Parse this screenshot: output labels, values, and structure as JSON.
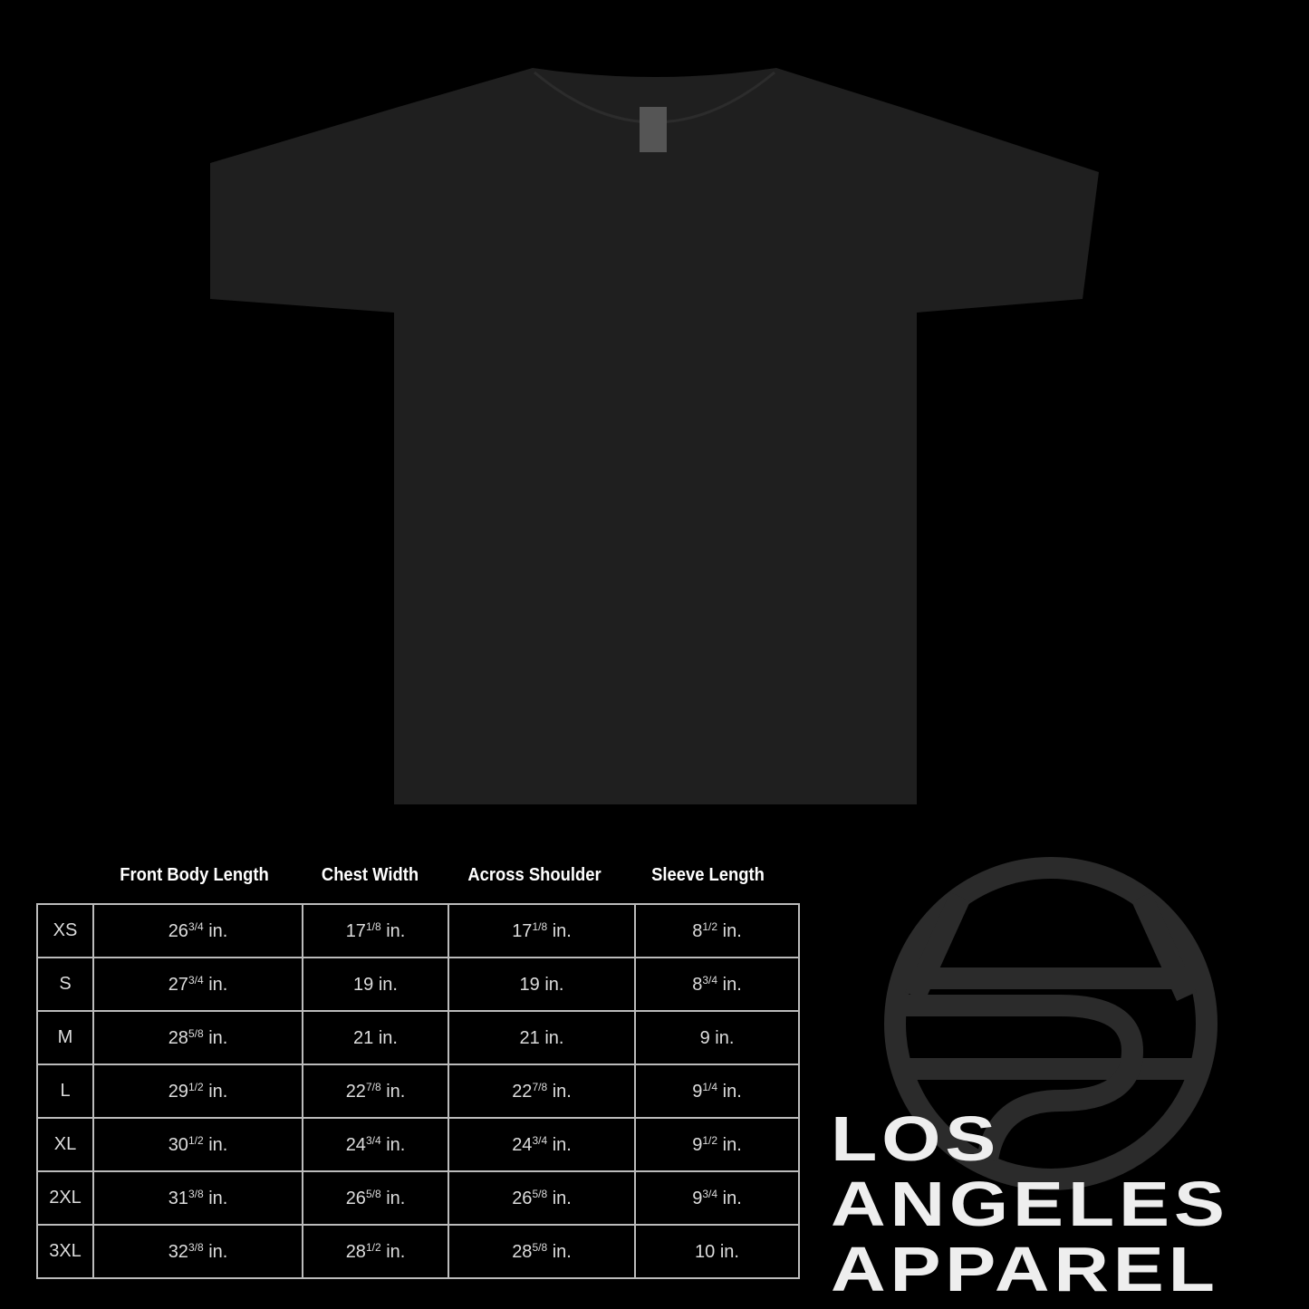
{
  "colors": {
    "background": "#000000",
    "shirt": "#1f1f1f",
    "logo_globe": "#2b2b2b",
    "text": "#ffffff",
    "grid": "#bbbbbb"
  },
  "product": {
    "type": "t-shirt",
    "color": "black"
  },
  "size_chart": {
    "columns": [
      "Front Body Length",
      "Chest Width",
      "Across Shoulder",
      "Sleeve Length"
    ],
    "rows": [
      {
        "size": "XS",
        "values": [
          {
            "whole": "26",
            "frac": "3/4",
            "unit": "in."
          },
          {
            "whole": "17",
            "frac": "1/8",
            "unit": "in."
          },
          {
            "whole": "17",
            "frac": "1/8",
            "unit": "in."
          },
          {
            "whole": "8",
            "frac": "1/2",
            "unit": "in."
          }
        ]
      },
      {
        "size": "S",
        "values": [
          {
            "whole": "27",
            "frac": "3/4",
            "unit": "in."
          },
          {
            "whole": "19",
            "frac": "",
            "unit": "in."
          },
          {
            "whole": "19",
            "frac": "",
            "unit": "in."
          },
          {
            "whole": "8",
            "frac": "3/4",
            "unit": "in."
          }
        ]
      },
      {
        "size": "M",
        "values": [
          {
            "whole": "28",
            "frac": "5/8",
            "unit": "in."
          },
          {
            "whole": "21",
            "frac": "",
            "unit": "in."
          },
          {
            "whole": "21",
            "frac": "",
            "unit": "in."
          },
          {
            "whole": "9",
            "frac": "",
            "unit": "in."
          }
        ]
      },
      {
        "size": "L",
        "values": [
          {
            "whole": "29",
            "frac": "1/2",
            "unit": "in."
          },
          {
            "whole": "22",
            "frac": "7/8",
            "unit": "in."
          },
          {
            "whole": "22",
            "frac": "7/8",
            "unit": "in."
          },
          {
            "whole": "9",
            "frac": "1/4",
            "unit": "in."
          }
        ]
      },
      {
        "size": "XL",
        "values": [
          {
            "whole": "30",
            "frac": "1/2",
            "unit": "in."
          },
          {
            "whole": "24",
            "frac": "3/4",
            "unit": "in."
          },
          {
            "whole": "24",
            "frac": "3/4",
            "unit": "in."
          },
          {
            "whole": "9",
            "frac": "1/2",
            "unit": "in."
          }
        ]
      },
      {
        "size": "2XL",
        "values": [
          {
            "whole": "31",
            "frac": "3/8",
            "unit": "in."
          },
          {
            "whole": "26",
            "frac": "5/8",
            "unit": "in."
          },
          {
            "whole": "26",
            "frac": "5/8",
            "unit": "in."
          },
          {
            "whole": "9",
            "frac": "3/4",
            "unit": "in."
          }
        ]
      },
      {
        "size": "3XL",
        "values": [
          {
            "whole": "32",
            "frac": "3/8",
            "unit": "in."
          },
          {
            "whole": "28",
            "frac": "1/2",
            "unit": "in."
          },
          {
            "whole": "28",
            "frac": "5/8",
            "unit": "in."
          },
          {
            "whole": "10",
            "frac": "",
            "unit": "in."
          }
        ]
      }
    ]
  },
  "brand": {
    "lines": [
      "LOS",
      "ANGELES",
      "APPAREL"
    ]
  }
}
